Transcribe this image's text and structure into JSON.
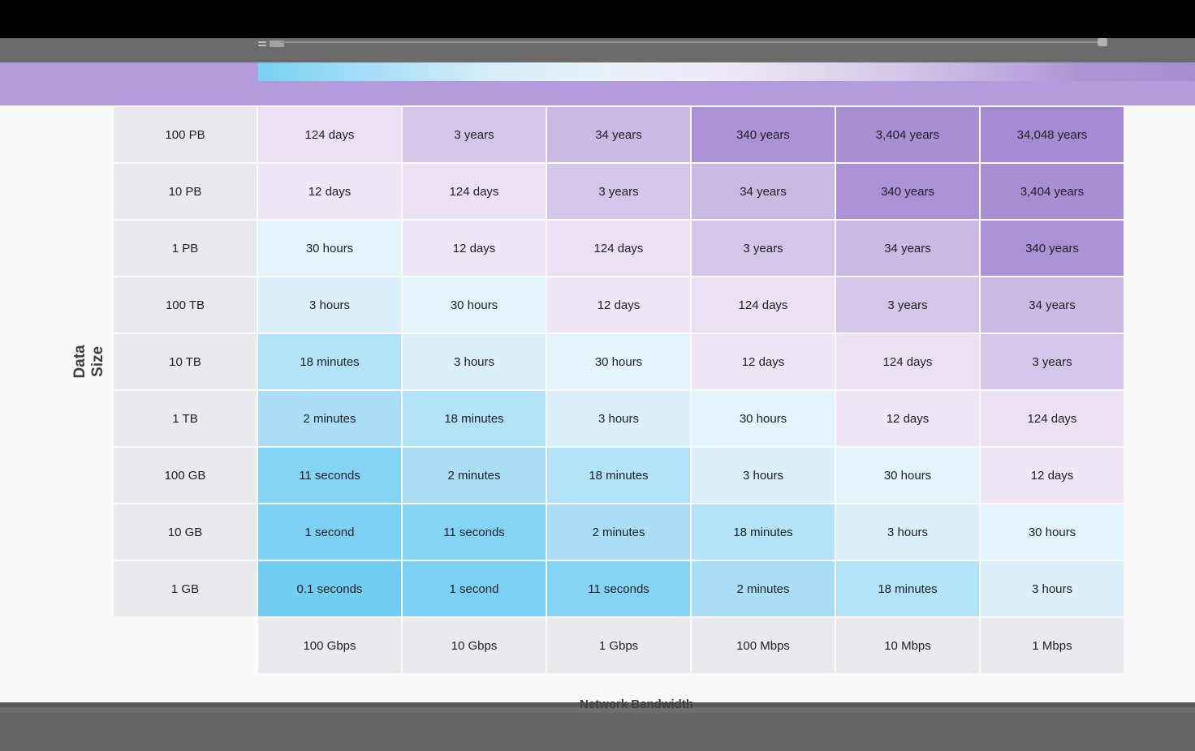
{
  "window": {
    "top_bar_color": "#000000",
    "toolbar_color": "#6b6b6b",
    "bottom_bar_color": "#656565",
    "toolbar_icons": [
      "menu-icon",
      "slider-track",
      "slider-thumb"
    ]
  },
  "legend": {
    "band_color": "#b29cdb",
    "gradient_stops": [
      "#79d1f4",
      "#a9def7",
      "#d6eefa",
      "#eaf1f9",
      "#efe8f6",
      "#ddd3ec",
      "#c7b7e2",
      "#ad96d6",
      "#a78dd2"
    ]
  },
  "chart_data": {
    "type": "heatmap",
    "xlabel": "Network Bandwidth",
    "ylabel": "Data Size",
    "columns": [
      "100 Gbps",
      "10 Gbps",
      "1 Gbps",
      "100 Mbps",
      "10 Mbps",
      "1 Mbps"
    ],
    "rows": [
      "100 PB",
      "10 PB",
      "1 PB",
      "100 TB",
      "10 TB",
      "1 TB",
      "100 GB",
      "10 GB",
      "1 GB"
    ],
    "cells": [
      [
        "124 days",
        "3 years",
        "34 years",
        "340 years",
        "3,404 years",
        "34,048 years"
      ],
      [
        "12 days",
        "124 days",
        "3 years",
        "34 years",
        "340 years",
        "3,404 years"
      ],
      [
        "30 hours",
        "12 days",
        "124 days",
        "3 years",
        "34 years",
        "340 years"
      ],
      [
        "3 hours",
        "30 hours",
        "12 days",
        "124 days",
        "3 years",
        "34 years"
      ],
      [
        "18 minutes",
        "3 hours",
        "30 hours",
        "12 days",
        "124 days",
        "3 years"
      ],
      [
        "2 minutes",
        "18 minutes",
        "3 hours",
        "30 hours",
        "12 days",
        "124 days"
      ],
      [
        "11 seconds",
        "2 minutes",
        "18 minutes",
        "3 hours",
        "30 hours",
        "12 days"
      ],
      [
        "1 second",
        "11 seconds",
        "2 minutes",
        "18 minutes",
        "3 hours",
        "30 hours"
      ],
      [
        "0.1 seconds",
        "1 second",
        "11 seconds",
        "2 minutes",
        "18 minutes",
        "3 hours"
      ]
    ],
    "label_bg": "#e8eaed",
    "text_color": "#202124",
    "value_colors": {
      "0.1 seconds": "#72cdf3",
      "1 second": "#7cd1f4",
      "11 seconds": "#84d5f5",
      "2 minutes": "#aadef7",
      "18 minutes": "#b2e3f8",
      "3 hours": "#dbf0fb",
      "30 hours": "#e3f4fc",
      "12 days": "#f0e7f6",
      "124 days": "#ebe1f3",
      "3 years": "#d3c6e9",
      "34 years": "#c9b9e3",
      "340 years": "#ab91d5",
      "3,404 years": "#a88ed3",
      "34,048 years": "#a58bd1"
    },
    "legend_position": "top",
    "grid": false
  }
}
